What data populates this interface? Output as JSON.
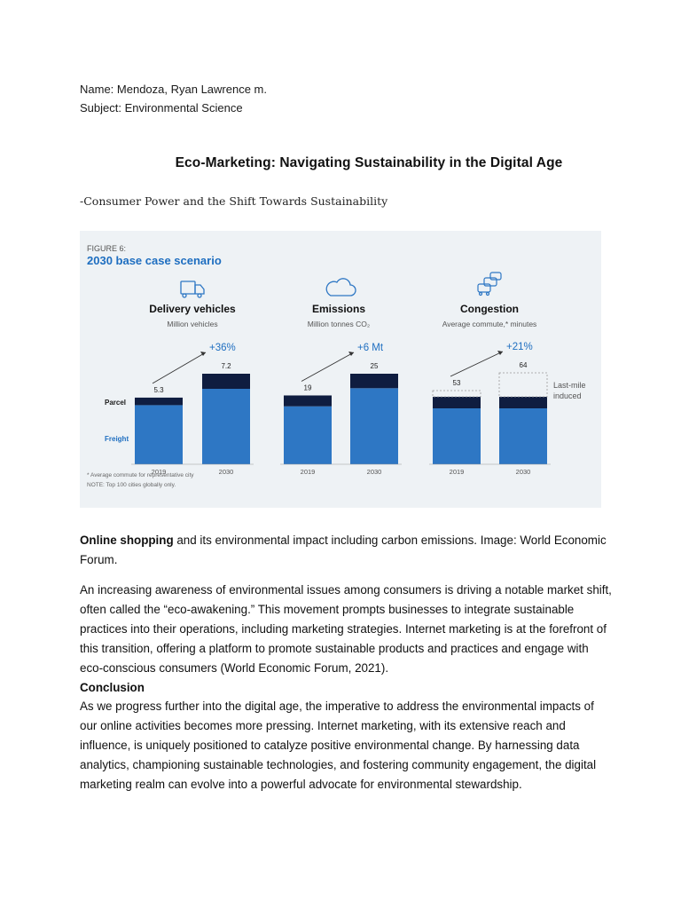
{
  "header": {
    "name_line": "Name: Mendoza, Ryan Lawrence m.",
    "subject_line": "Subject: Environmental Science"
  },
  "title": "Eco-Marketing: Navigating Sustainability in the Digital Age",
  "subtitle": "-Consumer Power and the Shift Towards Sustainability",
  "figure": {
    "label": "FIGURE 6:",
    "heading": "2030 base case scenario",
    "footnote1": "* Average commute for representative city",
    "footnote2": "NOTE: Top 100 cities globally only.",
    "colors": {
      "freight": "#2e77c4",
      "parcel": "#0f1d40",
      "accent": "#1e6ec0",
      "background": "#eef2f5"
    },
    "row_labels": {
      "parcel": "Parcel",
      "freight": "Freight"
    },
    "last_mile_label_1": "Last-mile",
    "last_mile_label_2": "induced"
  },
  "chart_data": [
    {
      "type": "bar",
      "title": "Delivery vehicles",
      "subtitle": "Million vehicles",
      "icon": "truck-icon",
      "categories": [
        "2019",
        "2030"
      ],
      "series": [
        {
          "name": "Freight",
          "values": [
            4.7,
            6.0
          ]
        },
        {
          "name": "Parcel",
          "values": [
            0.6,
            1.2
          ]
        }
      ],
      "totals": [
        "5.3",
        "7.2"
      ],
      "change": "+36%"
    },
    {
      "type": "bar",
      "title": "Emissions",
      "subtitle": "Million tonnes CO₂",
      "icon": "cloud-icon",
      "categories": [
        "2019",
        "2030"
      ],
      "series": [
        {
          "name": "Freight",
          "values": [
            16,
            21
          ]
        },
        {
          "name": "Parcel",
          "values": [
            3,
            4
          ]
        }
      ],
      "totals": [
        "19",
        "25"
      ],
      "change": "+6 Mt"
    },
    {
      "type": "bar",
      "title": "Congestion",
      "subtitle": "Average commute,* minutes",
      "icon": "cars-icon",
      "categories": [
        "2019",
        "2030"
      ],
      "series": [
        {
          "name": "Freight",
          "values": [
            40,
            40
          ]
        },
        {
          "name": "Parcel",
          "values": [
            5,
            6
          ]
        },
        {
          "name": "Last-mile induced",
          "values": [
            8,
            18
          ]
        }
      ],
      "totals": [
        "53",
        "64"
      ],
      "change": "+21%"
    }
  ],
  "caption": {
    "bold": "Online shopping",
    "rest": " and its environmental impact including carbon emissions. Image: World Economic Forum."
  },
  "paragraph1": "An increasing awareness of environmental issues among consumers is driving a notable market shift, often called the “eco-awakening.” This movement prompts businesses to integrate sustainable practices into their operations, including marketing strategies. Internet marketing is at the forefront of this transition, offering a platform to promote sustainable products and practices and engage with eco-conscious consumers (World Economic Forum, 2021).",
  "conclusion_heading": "Conclusion",
  "paragraph2": "As we progress further into the digital age, the imperative to address the environmental impacts of our online activities becomes more pressing. Internet marketing, with its extensive reach and influence, is uniquely positioned to catalyze positive environmental change. By harnessing data analytics, championing sustainable technologies, and fostering community engagement, the digital marketing realm can evolve into a powerful advocate for environmental stewardship."
}
